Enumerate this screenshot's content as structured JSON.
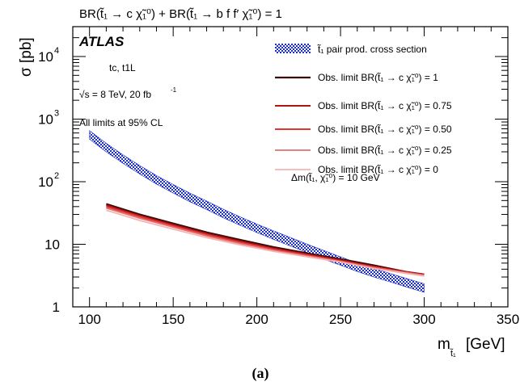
{
  "chart_data": {
    "type": "line",
    "title": "BR(t̃₁ → c χ̃₁⁰) + BR(t̃₁ → b f f′ χ̃₁⁰) = 1",
    "xlabel": "m",
    "xlabel_sub": "t̃₁",
    "xlabel_unit": "[GeV]",
    "ylabel": "σ [pb]",
    "xlim": [
      90,
      350
    ],
    "ylim": [
      1,
      30000
    ],
    "yscale": "log",
    "xticks": [
      100,
      150,
      200,
      250,
      300,
      350
    ],
    "yticks": [
      {
        "value": 1,
        "label": "1"
      },
      {
        "value": 10,
        "label": "10"
      },
      {
        "value": 100,
        "label": "10",
        "exp": "2"
      },
      {
        "value": 1000,
        "label": "10",
        "exp": "3"
      },
      {
        "value": 10000,
        "label": "10",
        "exp": "4"
      }
    ],
    "annotations": {
      "experiment": "ATLAS",
      "analysis": "tc, t1L",
      "energy": "√s = 8 TeV, 20 fb",
      "energy_sup": "-1",
      "cl": "All limits at 95% CL",
      "delta_m": "Δm(t̃₁, χ̃₁⁰) = 10 GeV",
      "panel": "(a)"
    },
    "band": {
      "name": "t̃₁ pair prod. cross section",
      "color": "#1a2ec8",
      "x": [
        100,
        110,
        120,
        130,
        140,
        150,
        160,
        170,
        180,
        190,
        200,
        210,
        220,
        230,
        240,
        250,
        260,
        270,
        280,
        290,
        300
      ],
      "y": [
        560,
        350,
        230,
        155,
        107,
        77,
        56,
        42,
        31,
        23.5,
        18,
        14,
        11,
        8.6,
        6.8,
        5.4,
        4.3,
        3.5,
        2.9,
        2.4,
        2.0
      ]
    },
    "series": [
      {
        "name": "Obs. limit BR(t̃₁ → c χ̃₁⁰) = 1",
        "color": "#3a0a0a",
        "width": 2.2,
        "x": [
          110,
          130,
          150,
          170,
          190,
          210,
          230,
          250,
          270,
          290,
          300
        ],
        "y": [
          44,
          30,
          21.5,
          15.5,
          11.8,
          9.0,
          7.2,
          5.8,
          4.6,
          3.6,
          3.3
        ]
      },
      {
        "name": "Obs. limit BR(t̃₁ → c χ̃₁⁰) = 0.75",
        "color": "#b01515",
        "width": 2.0,
        "x": [
          110,
          130,
          150,
          170,
          190,
          210,
          230,
          250,
          270,
          290,
          300
        ],
        "y": [
          42,
          28.5,
          20.5,
          14.8,
          11.2,
          8.6,
          6.9,
          5.6,
          4.4,
          3.6,
          3.3
        ]
      },
      {
        "name": "Obs. limit BR(t̃₁ → c χ̃₁⁰) = 0.50",
        "color": "#e6342f",
        "width": 2.0,
        "x": [
          110,
          130,
          150,
          170,
          190,
          210,
          230,
          250,
          270,
          290,
          300
        ],
        "y": [
          40,
          27.5,
          19.5,
          14.2,
          10.7,
          8.3,
          6.7,
          5.4,
          4.3,
          3.5,
          3.2
        ]
      },
      {
        "name": "Obs. limit BR(t̃₁ → c χ̃₁⁰) = 0.25",
        "color": "#e07070",
        "width": 1.8,
        "x": [
          110,
          130,
          150,
          170,
          190,
          210,
          230,
          250,
          270,
          290,
          300
        ],
        "y": [
          38,
          26,
          18.8,
          13.6,
          10.3,
          8.0,
          6.5,
          5.3,
          4.2,
          3.5,
          3.2
        ]
      },
      {
        "name": "Obs. limit BR(t̃₁ → c χ̃₁⁰) = 0",
        "color": "#f6b3b3",
        "width": 1.8,
        "x": [
          110,
          130,
          150,
          170,
          190,
          210,
          230,
          250,
          270,
          290,
          300
        ],
        "y": [
          35,
          24,
          17.5,
          12.8,
          9.8,
          7.7,
          6.3,
          5.2,
          4.1,
          3.4,
          3.1
        ]
      }
    ]
  }
}
